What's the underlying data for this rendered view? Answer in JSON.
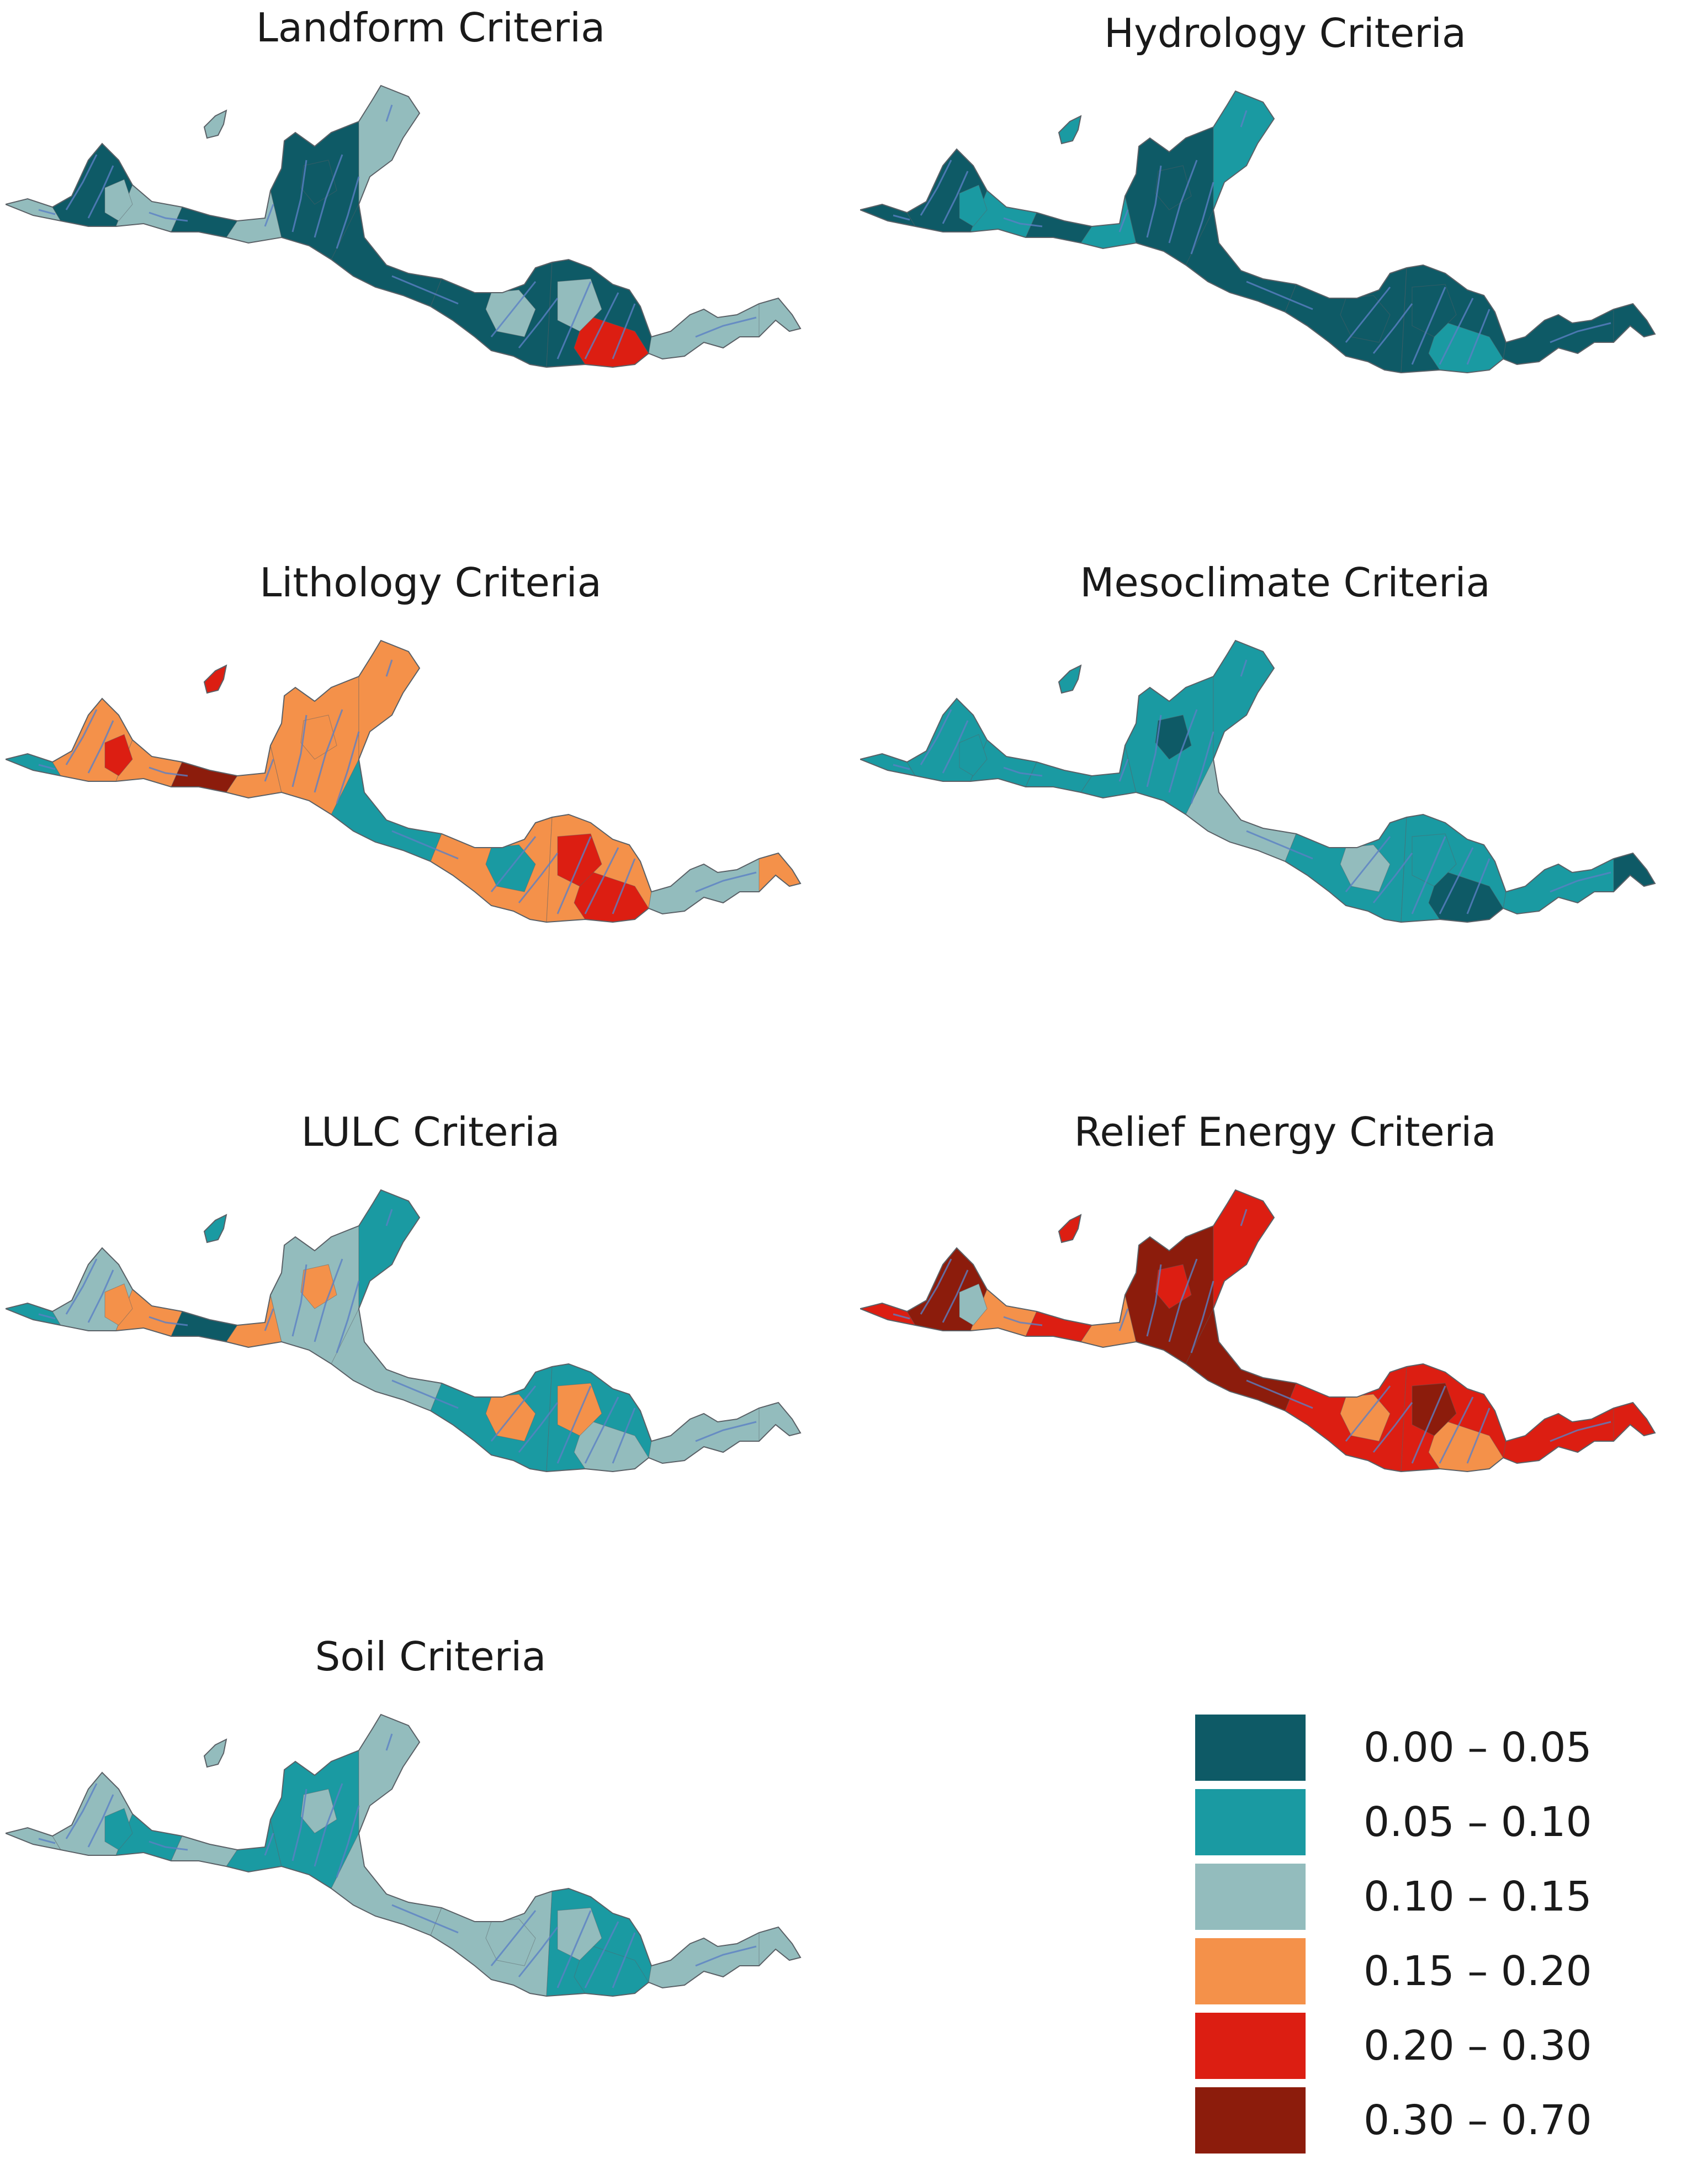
{
  "maps": [
    {
      "id": "landform",
      "title": "Landform Criteria"
    },
    {
      "id": "hydrology",
      "title": "Hydrology Criteria"
    },
    {
      "id": "lithology",
      "title": "Lithology Criteria"
    },
    {
      "id": "mesoclimate",
      "title": "Mesoclimate Criteria"
    },
    {
      "id": "lulc",
      "title": "LULC Criteria"
    },
    {
      "id": "relief",
      "title": "Relief Energy Criteria"
    },
    {
      "id": "soil",
      "title": "Soil Criteria"
    }
  ],
  "legend": {
    "items": [
      {
        "label": "0.00 – 0.05",
        "color": "#0e5a66"
      },
      {
        "label": "0.05 – 0.10",
        "color": "#1a9aa2"
      },
      {
        "label": "0.10 – 0.15",
        "color": "#93bcbd"
      },
      {
        "label": "0.15 – 0.20",
        "color": "#f4914a"
      },
      {
        "label": "0.20 – 0.30",
        "color": "#dc1e12"
      },
      {
        "label": "0.30 – 0.70",
        "color": "#8c1c0c"
      }
    ]
  },
  "colors": {
    "stream": "#5b7fc4",
    "outline": "#5a6066"
  }
}
